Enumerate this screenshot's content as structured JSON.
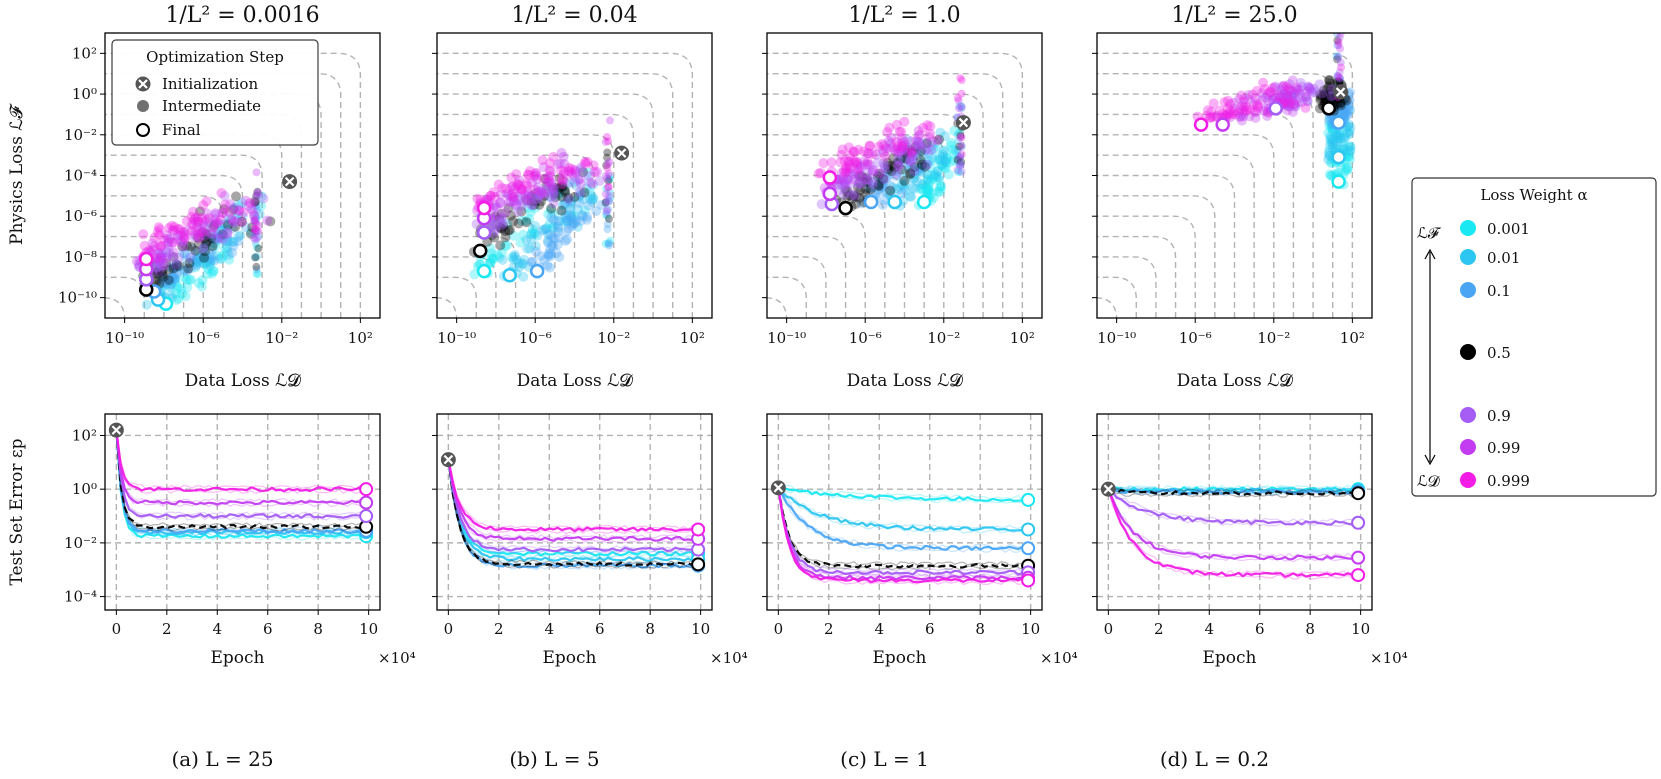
{
  "colors": {
    "alpha_0.001": "#19e8f2",
    "alpha_0.01": "#2cc6f2",
    "alpha_0.1": "#4aa6f5",
    "alpha_0.5": "#000000",
    "alpha_0.9": "#a45cf5",
    "alpha_0.99": "#c43cf2",
    "alpha_0.999": "#f21ce6",
    "grid": "#b3b3b3"
  },
  "legend_steps": {
    "title": "Optimization Step",
    "items": [
      "Initialization",
      "Intermediate",
      "Final"
    ]
  },
  "legend_alpha": {
    "title": "Loss Weight α",
    "top_label": "ℒ𝓕",
    "bottom_label": "ℒ𝓓",
    "items": [
      "0.001",
      "0.01",
      "0.1",
      "0.5",
      "0.9",
      "0.99",
      "0.999"
    ]
  },
  "labels": {
    "top_x": "Data Loss ℒ𝓓",
    "top_y": "Physics Loss ℒ𝓕",
    "bottom_x": "Epoch",
    "bottom_y": "Test Set Error εp",
    "x_multiplier": "×10⁴"
  },
  "chart_data": [
    {
      "type": "scatter",
      "title": "1/L² = 0.0016",
      "caption": "(a)    L = 25",
      "xlabel": "Data Loss ℒ𝓓",
      "ylabel": "Physics Loss ℒ𝓕",
      "xscale": "log",
      "yscale": "log",
      "xlim_exp": [
        -11,
        3
      ],
      "ylim_exp": [
        -11,
        3
      ],
      "xticks": [
        "10⁻¹⁰",
        "10⁻⁶",
        "10⁻²",
        "10²"
      ],
      "yticks": [
        "10⁻¹⁰",
        "10⁻⁸",
        "10⁻⁶",
        "10⁻⁴",
        "10⁻²",
        "10⁰",
        "10²"
      ],
      "init": [
        -1.6,
        -4.3
      ],
      "final": {
        "0.001": [
          -7.9,
          -10.3
        ],
        "0.01": [
          -8.3,
          -10.1
        ],
        "0.1": [
          -8.5,
          -9.7
        ],
        "0.5": [
          -8.9,
          -9.6
        ],
        "0.9": [
          -8.9,
          -9.1
        ],
        "0.99": [
          -8.9,
          -8.6
        ],
        "0.999": [
          -8.9,
          -8.1
        ]
      },
      "cloud_x": [
        -9.0,
        -6.0
      ],
      "extra_column_x": -3.3
    },
    {
      "type": "scatter",
      "title": "1/L² = 0.04",
      "caption": "(b)    L = 5",
      "xlabel": "Data Loss ℒ𝓓",
      "ylabel": "",
      "xscale": "log",
      "yscale": "log",
      "xlim_exp": [
        -11,
        3
      ],
      "ylim_exp": [
        -11,
        3
      ],
      "xticks": [
        "10⁻¹⁰",
        "10⁻⁶",
        "10⁻²",
        "10²"
      ],
      "init": [
        -1.6,
        -2.9
      ],
      "final": {
        "0.001": [
          -8.6,
          -8.7
        ],
        "0.01": [
          -7.3,
          -8.9
        ],
        "0.1": [
          -5.9,
          -8.7
        ],
        "0.5": [
          -8.8,
          -7.7
        ],
        "0.9": [
          -8.6,
          -6.8
        ],
        "0.99": [
          -8.6,
          -6.1
        ],
        "0.999": [
          -8.6,
          -5.6
        ]
      },
      "cloud_x": [
        -8.8,
        -5.0
      ],
      "extra_column_x": -2.3
    },
    {
      "type": "scatter",
      "title": "1/L² = 1.0",
      "caption": "(c)    L = 1",
      "xlabel": "Data Loss ℒ𝓓",
      "ylabel": "",
      "xscale": "log",
      "yscale": "log",
      "xlim_exp": [
        -11,
        3
      ],
      "ylim_exp": [
        -11,
        3
      ],
      "xticks": [
        "10⁻¹⁰",
        "10⁻⁶",
        "10⁻²",
        "10²"
      ],
      "init": [
        -1.0,
        -1.4
      ],
      "final": {
        "0.001": [
          -3.0,
          -5.3
        ],
        "0.01": [
          -4.5,
          -5.3
        ],
        "0.1": [
          -5.7,
          -5.3
        ],
        "0.5": [
          -7.0,
          -5.6
        ],
        "0.9": [
          -7.7,
          -5.4
        ],
        "0.99": [
          -7.8,
          -4.9
        ],
        "0.999": [
          -7.8,
          -4.1
        ]
      },
      "cloud_x": [
        -7.8,
        -1.2
      ],
      "extra_column_x": -1.2
    },
    {
      "type": "scatter",
      "title": "1/L² = 25.0",
      "caption": "(d)    L = 0.2",
      "xlabel": "Data Loss ℒ𝓓",
      "ylabel": "",
      "xscale": "log",
      "yscale": "log",
      "xlim_exp": [
        -11,
        3
      ],
      "ylim_exp": [
        -11,
        3
      ],
      "xticks": [
        "10⁻¹⁰",
        "10⁻⁶",
        "10⁻²",
        "10²"
      ],
      "init": [
        1.4,
        0.1
      ],
      "final": {
        "0.001": [
          1.3,
          -4.3
        ],
        "0.01": [
          1.3,
          -3.1
        ],
        "0.1": [
          1.3,
          -1.4
        ],
        "0.5": [
          0.8,
          -0.7
        ],
        "0.9": [
          -1.9,
          -0.7
        ],
        "0.99": [
          -4.6,
          -1.5
        ],
        "0.999": [
          -5.7,
          -1.5
        ]
      },
      "cloud_x": [
        -5.7,
        1.4
      ],
      "extra_column_x": 1.3
    },
    {
      "type": "line",
      "xlabel": "Epoch",
      "ylabel": "Test Set Error εp",
      "yscale": "log",
      "ylim_exp": [
        -4.5,
        2.8
      ],
      "x": [
        0,
        10
      ],
      "xticks": [
        "0",
        "2",
        "4",
        "6",
        "8",
        "10"
      ],
      "yticks": [
        "10⁻⁴",
        "10⁻²",
        "10⁰",
        "10²"
      ],
      "start_exp": 2.2,
      "final_exp": {
        "0.001": -1.75,
        "0.01": -1.6,
        "0.1": -1.55,
        "0.5": -1.4,
        "0.9": -1.0,
        "0.99": -0.5,
        "0.999": 0.0
      }
    },
    {
      "type": "line",
      "xlabel": "Epoch",
      "ylabel": "",
      "yscale": "log",
      "ylim_exp": [
        -4.5,
        2.8
      ],
      "x": [
        0,
        10
      ],
      "xticks": [
        "0",
        "2",
        "4",
        "6",
        "8",
        "10"
      ],
      "start_exp": 1.1,
      "final_exp": {
        "0.001": -2.4,
        "0.01": -2.6,
        "0.1": -2.85,
        "0.5": -2.8,
        "0.9": -2.25,
        "0.99": -1.85,
        "0.999": -1.5
      }
    },
    {
      "type": "line",
      "xlabel": "Epoch",
      "ylabel": "",
      "yscale": "log",
      "ylim_exp": [
        -4.5,
        2.8
      ],
      "x": [
        0,
        10
      ],
      "xticks": [
        "0",
        "2",
        "4",
        "6",
        "8",
        "10"
      ],
      "start_exp": 0.05,
      "final_exp": {
        "0.001": -0.4,
        "0.01": -1.5,
        "0.1": -2.2,
        "0.5": -2.85,
        "0.9": -3.1,
        "0.99": -3.3,
        "0.999": -3.4
      }
    },
    {
      "type": "line",
      "xlabel": "Epoch",
      "ylabel": "",
      "yscale": "log",
      "ylim_exp": [
        -4.5,
        2.8
      ],
      "x": [
        0,
        10
      ],
      "xticks": [
        "0",
        "2",
        "4",
        "6",
        "8",
        "10"
      ],
      "start_exp": 0.0,
      "final_exp": {
        "0.001": 0.0,
        "0.01": -0.05,
        "0.1": -0.1,
        "0.5": -0.15,
        "0.9": -1.25,
        "0.99": -2.55,
        "0.999": -3.2
      }
    }
  ]
}
